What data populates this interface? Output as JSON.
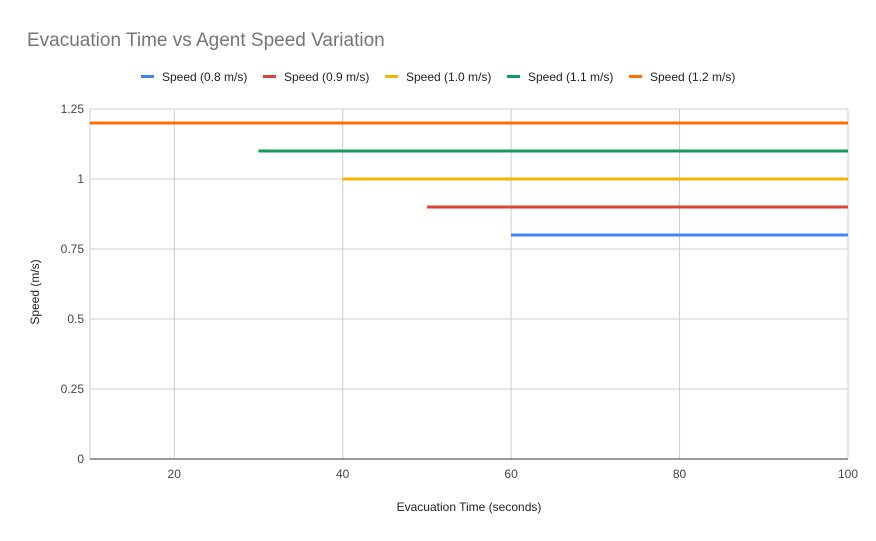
{
  "chart_data": {
    "type": "line",
    "title": "Evacuation  Time vs Agent Speed Variation",
    "xlabel": "Evacuation Time (seconds)",
    "ylabel": "Speed (m/s)",
    "xlim": [
      10,
      100
    ],
    "ylim": [
      0,
      1.25
    ],
    "x_ticks": [
      20,
      40,
      60,
      80,
      100
    ],
    "y_ticks": [
      0,
      0.25,
      0.5,
      0.75,
      1,
      1.25
    ],
    "y_tick_labels": [
      "0",
      "0.25",
      "0.5",
      "0.75",
      "1",
      "1.25"
    ],
    "grid": true,
    "legend_position": "top",
    "series": [
      {
        "name": "Speed (0.8 m/s)",
        "color": "#4285F4",
        "points": [
          [
            60,
            0.8
          ],
          [
            100,
            0.8
          ]
        ]
      },
      {
        "name": "Speed (0.9 m/s)",
        "color": "#DB4437",
        "points": [
          [
            50,
            0.9
          ],
          [
            100,
            0.9
          ]
        ]
      },
      {
        "name": "Speed (1.0 m/s)",
        "color": "#F4B400",
        "points": [
          [
            40,
            1.0
          ],
          [
            100,
            1.0
          ]
        ]
      },
      {
        "name": "Speed (1.1 m/s)",
        "color": "#0F9D58",
        "points": [
          [
            30,
            1.1
          ],
          [
            100,
            1.1
          ]
        ]
      },
      {
        "name": "Speed (1.2 m/s)",
        "color": "#FF6D01",
        "points": [
          [
            10,
            1.2
          ],
          [
            100,
            1.2
          ]
        ]
      }
    ]
  }
}
